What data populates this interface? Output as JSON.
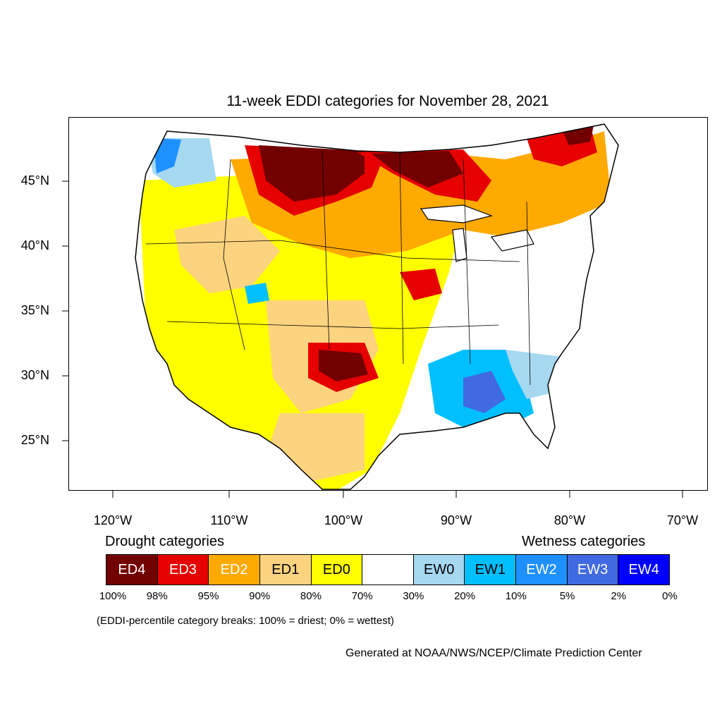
{
  "title": "11-week EDDI categories for November 28, 2021",
  "lat_labels": [
    "45°N",
    "40°N",
    "35°N",
    "30°N",
    "25°N"
  ],
  "lon_labels": [
    "120°W",
    "110°W",
    "100°W",
    "90°W",
    "80°W",
    "70°W"
  ],
  "legend": {
    "drought_heading": "Drought categories",
    "wetness_heading": "Wetness categories",
    "categories": [
      {
        "label": "ED4",
        "color": "#730000",
        "text_color": "#ffffff"
      },
      {
        "label": "ED3",
        "color": "#e60000",
        "text_color": "#ffffff"
      },
      {
        "label": "ED2",
        "color": "#ffaa00",
        "text_color": "#ffffff"
      },
      {
        "label": "ED1",
        "color": "#fcd37f",
        "text_color": "#000000"
      },
      {
        "label": "ED0",
        "color": "#ffff00",
        "text_color": "#000000"
      },
      {
        "label": "",
        "color": "#ffffff",
        "text_color": "#000000"
      },
      {
        "label": "EW0",
        "color": "#a6d8f0",
        "text_color": "#000000"
      },
      {
        "label": "EW1",
        "color": "#00bfff",
        "text_color": "#000000"
      },
      {
        "label": "EW2",
        "color": "#1e90ff",
        "text_color": "#ffffff"
      },
      {
        "label": "EW3",
        "color": "#4169e1",
        "text_color": "#ffffff"
      },
      {
        "label": "EW4",
        "color": "#0000ff",
        "text_color": "#ffffff"
      }
    ],
    "breaks": [
      "100%",
      "98%",
      "95%",
      "90%",
      "80%",
      "70%",
      "30%",
      "20%",
      "10%",
      "5%",
      "2%",
      "0%"
    ]
  },
  "note": "(EDDI-percentile category breaks: 100% = driest; 0% = wettest)",
  "credit": "Generated at NOAA/NWS/NCEP/Climate Prediction Center"
}
